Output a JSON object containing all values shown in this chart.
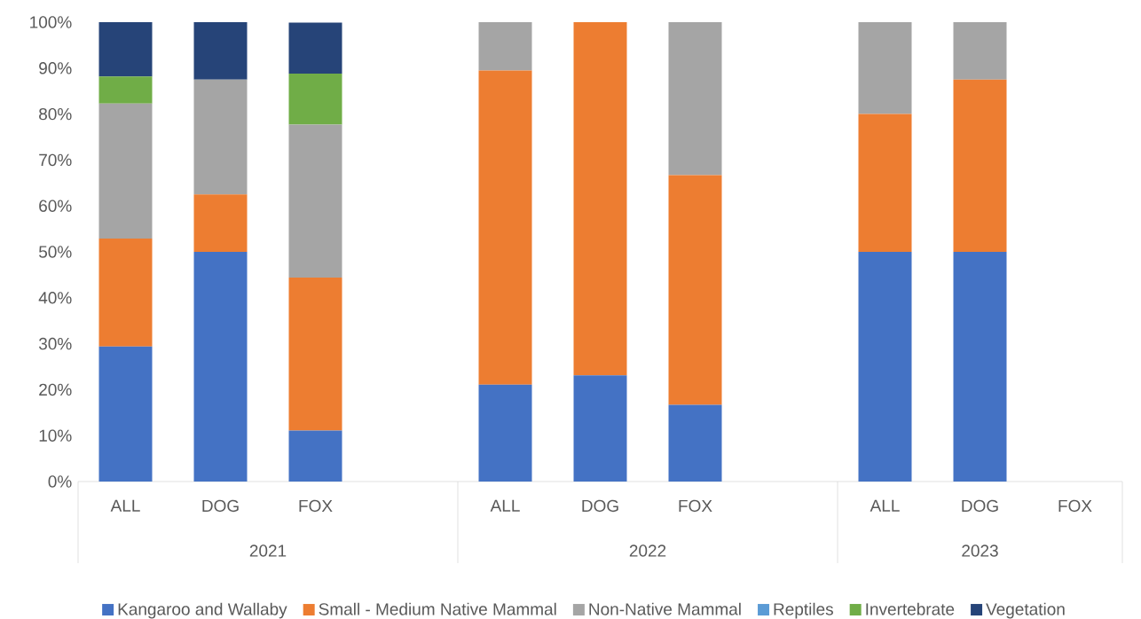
{
  "chart_data": {
    "type": "bar",
    "stacked": true,
    "categories": [
      "ALL",
      "DOG",
      "FOX",
      null,
      "ALL",
      "DOG",
      "FOX",
      null,
      "ALL",
      "DOG",
      "FOX"
    ],
    "annotations": [
      "2021",
      "2022",
      "2023"
    ],
    "series": [
      {
        "name": "Kangaroo and Wallaby",
        "color": "#4472c4",
        "values": [
          29.4,
          50,
          11.1,
          null,
          21.1,
          23.1,
          16.7,
          null,
          50,
          50,
          null
        ]
      },
      {
        "name": "Small - Medium Native Mammal",
        "color": "#ed7d31",
        "values": [
          23.5,
          12.5,
          33.3,
          null,
          68.4,
          76.9,
          50,
          null,
          30,
          37.5,
          null
        ]
      },
      {
        "name": "Non-Native Mammal",
        "color": "#a5a5a5",
        "values": [
          29.4,
          25,
          33.3,
          null,
          10.5,
          0,
          33.3,
          null,
          20,
          12.5,
          null
        ]
      },
      {
        "name": "Reptiles",
        "color": "#5b9bd5",
        "values": [
          0,
          0,
          0,
          null,
          0,
          0,
          0,
          null,
          0,
          0,
          null
        ]
      },
      {
        "name": "Invertebrate",
        "color": "#70ad47",
        "values": [
          5.9,
          0,
          11.1,
          null,
          0,
          0,
          0,
          null,
          0,
          0,
          null
        ]
      },
      {
        "name": "Vegetation",
        "color": "#264478",
        "values": [
          11.8,
          12.5,
          11.1,
          null,
          0,
          0,
          0,
          null,
          0,
          0,
          null
        ]
      }
    ],
    "ylim": [
      0,
      100
    ],
    "yticks": [
      {
        "value": 0,
        "label": "0%"
      },
      {
        "value": 10,
        "label": "10%"
      },
      {
        "value": 20,
        "label": "20%"
      },
      {
        "value": 30,
        "label": "30%"
      },
      {
        "value": 40,
        "label": "40%"
      },
      {
        "value": 50,
        "label": "50%"
      },
      {
        "value": 60,
        "label": "60%"
      },
      {
        "value": 70,
        "label": "70%"
      },
      {
        "value": 80,
        "label": "80%"
      },
      {
        "value": 90,
        "label": "90%"
      },
      {
        "value": 100,
        "label": "100%"
      }
    ],
    "grid": false,
    "legend": "bottom"
  }
}
